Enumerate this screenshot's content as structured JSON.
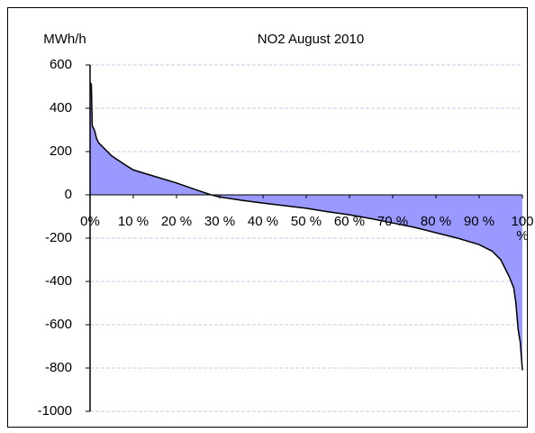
{
  "chart_data": {
    "type": "area",
    "title": "NO2  August 2010",
    "y_label": "MWh/h",
    "x": [
      0,
      0.3,
      0.5,
      1,
      1.5,
      2,
      3,
      5,
      8,
      10,
      15,
      20,
      25,
      28,
      30,
      35,
      40,
      45,
      50,
      55,
      60,
      65,
      70,
      75,
      80,
      85,
      90,
      93,
      95,
      97,
      98,
      98.5,
      99,
      99.5,
      100
    ],
    "values": [
      520,
      510,
      320,
      300,
      260,
      240,
      220,
      180,
      140,
      115,
      85,
      55,
      20,
      0,
      -10,
      -25,
      -38,
      -50,
      -62,
      -78,
      -92,
      -110,
      -130,
      -150,
      -175,
      -200,
      -230,
      -260,
      -300,
      -380,
      -430,
      -500,
      -620,
      -680,
      -810
    ],
    "fill_color": "#9999ff",
    "line_color": "#000000",
    "grid_color": "#c8c8f0",
    "xlim": [
      0,
      100
    ],
    "xticks": [
      {
        "value": 0,
        "label": "0%"
      },
      {
        "value": 10,
        "label": "10 %"
      },
      {
        "value": 20,
        "label": "20 %"
      },
      {
        "value": 30,
        "label": "30 %"
      },
      {
        "value": 40,
        "label": "40 %"
      },
      {
        "value": 50,
        "label": "50 %"
      },
      {
        "value": 60,
        "label": "60 %"
      },
      {
        "value": 70,
        "label": "70 %"
      },
      {
        "value": 80,
        "label": "80 %"
      },
      {
        "value": 90,
        "label": "90 %"
      },
      {
        "value": 100,
        "label": "100 %"
      }
    ],
    "ylim": [
      -1000,
      600
    ],
    "yticks": [
      -1000,
      -800,
      -600,
      -400,
      -200,
      0,
      200,
      400,
      600
    ],
    "grid": true
  }
}
